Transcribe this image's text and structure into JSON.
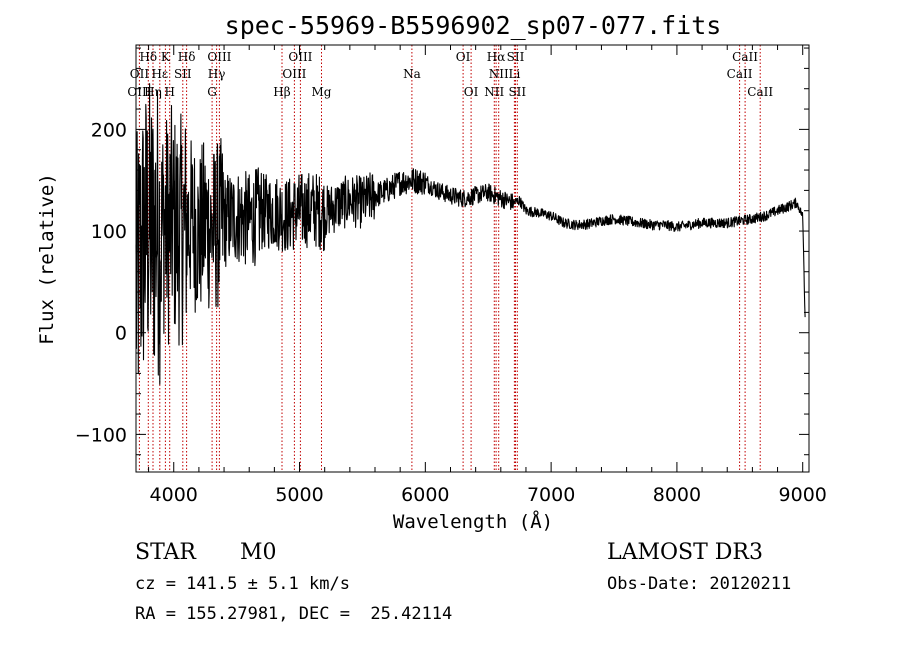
{
  "chart_data": {
    "type": "line",
    "title": "spec-55969-B5596902_sp07-077.fits",
    "xlabel": "Wavelength (Å)",
    "ylabel": "Flux (relative)",
    "xlim": [
      3700,
      9050
    ],
    "ylim": [
      -137,
      283
    ],
    "x_ticks": [
      4000,
      5000,
      6000,
      7000,
      8000,
      9000
    ],
    "y_ticks": [
      -100,
      0,
      100,
      200
    ],
    "grid": false,
    "series": [
      {
        "name": "spectrum",
        "x": [
          3700,
          3720,
          3740,
          3760,
          3780,
          3800,
          3820,
          3840,
          3860,
          3880,
          3900,
          3920,
          3940,
          3960,
          3980,
          4000,
          4050,
          4100,
          4150,
          4200,
          4250,
          4300,
          4350,
          4400,
          4500,
          4600,
          4700,
          4800,
          4900,
          5000,
          5100,
          5200,
          5300,
          5400,
          5500,
          5600,
          5700,
          5800,
          5900,
          6000,
          6100,
          6200,
          6300,
          6400,
          6500,
          6550,
          6600,
          6650,
          6700,
          6750,
          6800,
          6900,
          7000,
          7100,
          7200,
          7300,
          7400,
          7500,
          7600,
          7700,
          7800,
          7900,
          8000,
          8100,
          8200,
          8300,
          8400,
          8500,
          8600,
          8700,
          8800,
          8900,
          8950,
          9000,
          9020
        ],
        "y": [
          40,
          60,
          80,
          90,
          100,
          105,
          100,
          95,
          110,
          100,
          95,
          110,
          105,
          100,
          110,
          105,
          100,
          105,
          110,
          95,
          110,
          100,
          105,
          110,
          115,
          110,
          118,
          120,
          115,
          120,
          122,
          118,
          125,
          130,
          128,
          135,
          140,
          148,
          150,
          148,
          140,
          135,
          132,
          135,
          138,
          135,
          132,
          130,
          128,
          130,
          120,
          118,
          115,
          108,
          106,
          107,
          110,
          112,
          110,
          108,
          106,
          106,
          104,
          106,
          108,
          108,
          108,
          110,
          112,
          115,
          120,
          125,
          128,
          115,
          10
        ]
      }
    ],
    "lines": [
      {
        "label": "Hδ",
        "wl": 3798,
        "row": 0
      },
      {
        "label": "K",
        "wl": 3934,
        "row": 0
      },
      {
        "label": "Hδ",
        "wl": 4102,
        "row": 0
      },
      {
        "label": "OIII",
        "wl": 4363,
        "row": 0
      },
      {
        "label": "OIII",
        "wl": 5007,
        "row": 0
      },
      {
        "label": "OI",
        "wl": 6300,
        "row": 0
      },
      {
        "label": "Hα",
        "wl": 6563,
        "row": 0
      },
      {
        "label": "SII",
        "wl": 6717,
        "row": 0
      },
      {
        "label": "CaII",
        "wl": 8542,
        "row": 0
      },
      {
        "label": "OII",
        "wl": 3727,
        "row": 1
      },
      {
        "label": "Hε",
        "wl": 3889,
        "row": 1
      },
      {
        "label": "SII",
        "wl": 4072,
        "row": 1
      },
      {
        "label": "Hγ",
        "wl": 4341,
        "row": 1
      },
      {
        "label": "OIII",
        "wl": 4959,
        "row": 1
      },
      {
        "label": "Na",
        "wl": 5893,
        "row": 1
      },
      {
        "label": "NII",
        "wl": 6583,
        "row": 1
      },
      {
        "label": "Li",
        "wl": 6708,
        "row": 1
      },
      {
        "label": "CaII",
        "wl": 8498,
        "row": 1
      },
      {
        "label": "OIII",
        "wl": 3727,
        "row": 2
      },
      {
        "label": "Hη",
        "wl": 3835,
        "row": 2
      },
      {
        "label": "H",
        "wl": 3968,
        "row": 2
      },
      {
        "label": "G",
        "wl": 4305,
        "row": 2
      },
      {
        "label": "Hβ",
        "wl": 4861,
        "row": 2
      },
      {
        "label": "Mg",
        "wl": 5175,
        "row": 2
      },
      {
        "label": "OI",
        "wl": 6364,
        "row": 2
      },
      {
        "label": "NII",
        "wl": 6548,
        "row": 2
      },
      {
        "label": "SII",
        "wl": 6731,
        "row": 2
      },
      {
        "label": "CaII",
        "wl": 8662,
        "row": 2
      }
    ],
    "colors": {
      "line_marker": "#c00000",
      "spectrum": "#000000",
      "axes": "#000000"
    }
  },
  "info": {
    "object_class": "STAR",
    "subclass": "M0",
    "survey": "LAMOST DR3",
    "cz": "cz = 141.5 ± 5.1 km/s",
    "obs_date": "Obs-Date: 20120211",
    "coords": "RA = 155.27981, DEC =  25.42114"
  }
}
